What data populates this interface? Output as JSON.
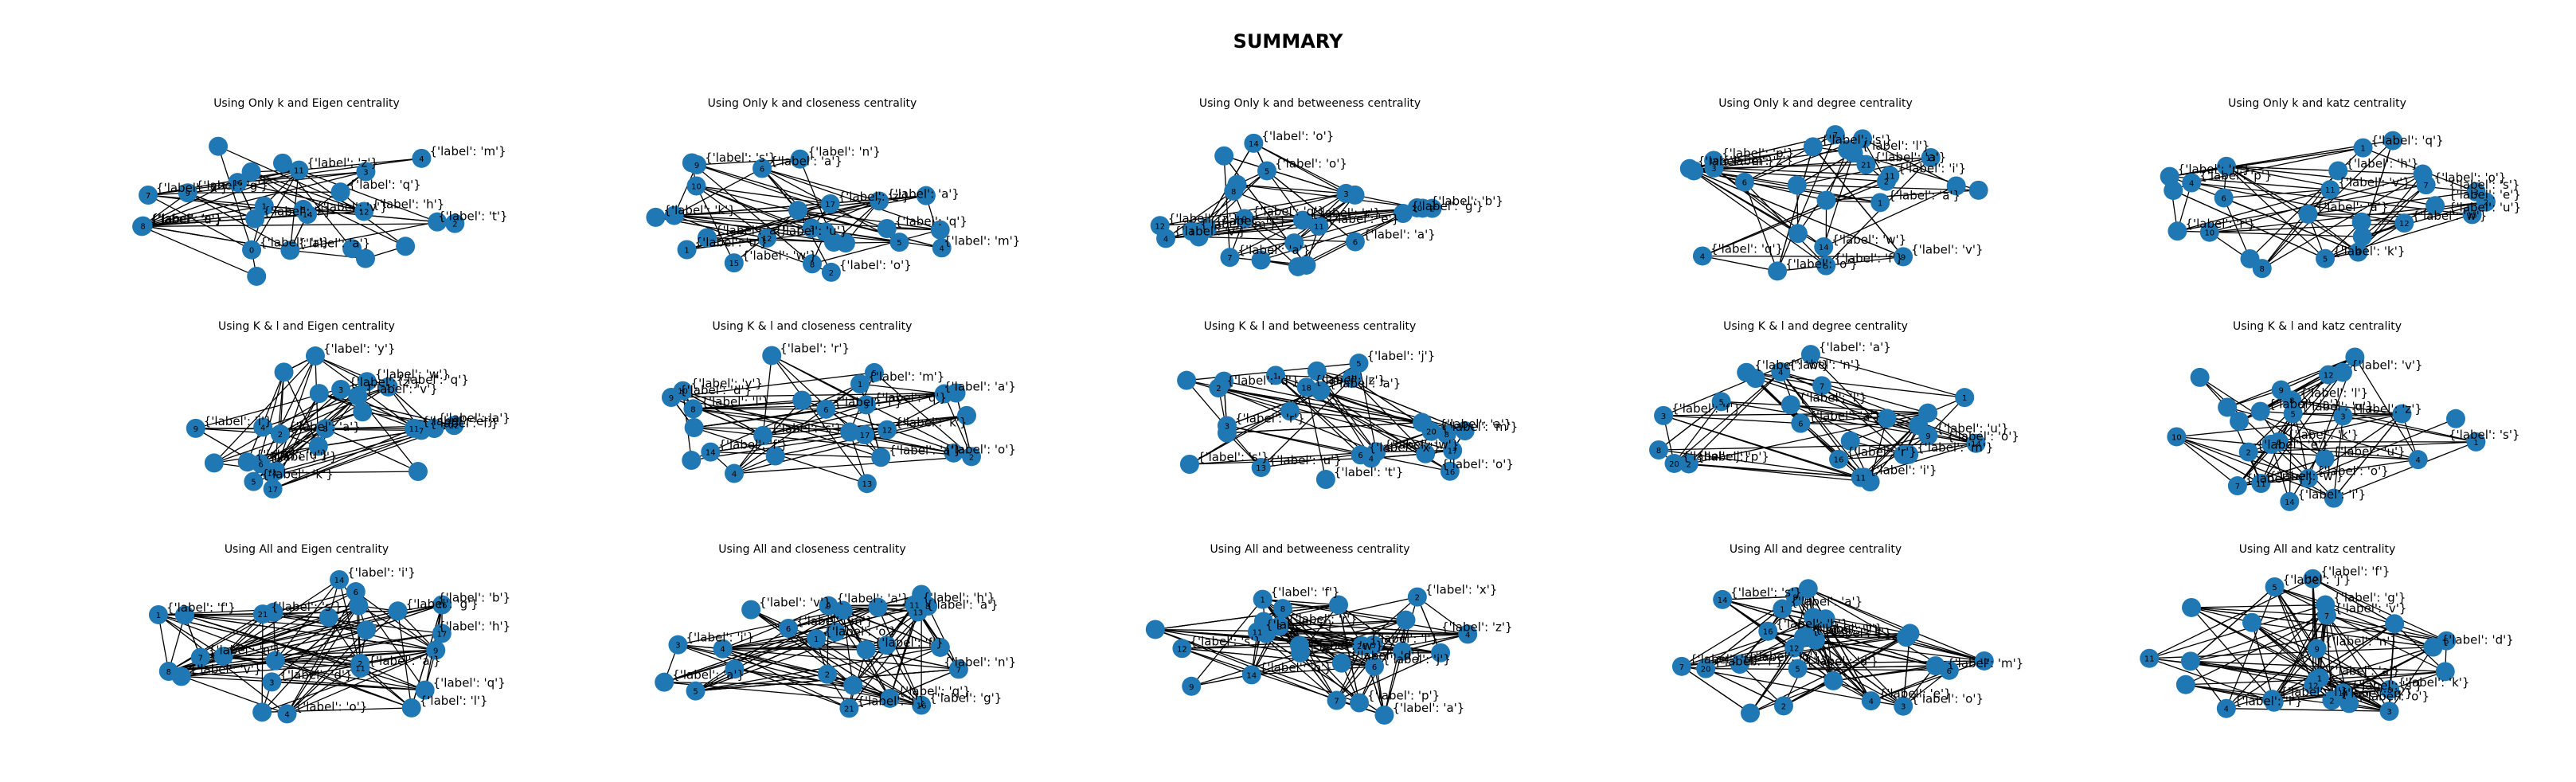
{
  "figure": {
    "suptitle": "SUMMARY",
    "node_color": "#1f77b4",
    "edge_color": "#000000"
  },
  "panels": [
    {
      "title": "Using Only k and Eigen centrality",
      "labels": [
        "{'label': 'm'}",
        "{'label': 'r'}",
        "{'label': 'x'}",
        "{'label': 'v'}",
        "{'label': 'a'}",
        "{'label': 'u'}",
        "{'label': 'i'}",
        "{'label': 'q'}",
        "{'label': 'h'}",
        "{'label': 's'}",
        "{'label': 'z'}",
        "{'label': 't'}",
        "{'label': 'g'}"
      ],
      "numbers": [
        "12",
        "4",
        "3",
        "8",
        "0",
        "1",
        "11",
        "7",
        "16",
        "2",
        "14",
        "5",
        "9"
      ],
      "edges": 60
    },
    {
      "title": "Using Only k and closeness centrality",
      "labels": [
        "{'label': 'a'}",
        "{'label': 'u'}",
        "{'label': 'z'}",
        "{'label': 'w'}",
        "{'label': 'k'}",
        "{'label': 'n'}",
        "{'label': 'q'}",
        "{'label': 'a'}",
        "{'label': 'o'}",
        "{'label': 'u'}",
        "{'label': 'a'}",
        "{'label': 's'}",
        "{'label': 'm'}"
      ],
      "numbers": [
        "2",
        "6",
        "10",
        "1",
        "12",
        "3",
        "7",
        "17",
        "5",
        "9",
        "15",
        "8",
        "4"
      ],
      "edges": 60
    },
    {
      "title": "Using Only k and betweeness centrality",
      "labels": [
        "{'label': 'z'}",
        "{'label': 'a'}",
        "{'label': 'q'}",
        "{'label': 'm'}",
        "{'label': 'g'}",
        "{'label': 'b'}",
        "{'label': 's'}",
        "{'label': 'r'}",
        "{'label': 'v'}",
        "{'label': 'o'}",
        "{'label': 'e'}",
        "{'label': 'a'}",
        "{'label': 'o'}"
      ],
      "numbers": [
        "4",
        "12",
        "3",
        "14",
        "7",
        "2",
        "11",
        "9",
        "20",
        "6",
        "1",
        "8",
        "5"
      ],
      "edges": 60
    },
    {
      "title": "Using Only k and degree centrality",
      "labels": [
        "{'label': 'w'}",
        "{'label': 'a'}",
        "{'label': 'i'}",
        "{'label': 'v'}",
        "{'label': 'm'}",
        "{'label': 'o'}",
        "{'label': 's'}",
        "{'label': 'l'}",
        "{'label': 'z'}",
        "{'label': 'p'}",
        "{'label': 'a'}",
        "{'label': 'q'}",
        "{'label': 'f'}"
      ],
      "numbers": [
        "3",
        "14",
        "6",
        "10",
        "1",
        "7",
        "21",
        "11",
        "2",
        "4",
        "9",
        "13",
        "5"
      ],
      "edges": 60
    },
    {
      "title": "Using Only k and katz centrality",
      "labels": [
        "{'label': 'u'}",
        "{'label': 'e'}",
        "{'label': 's'}",
        "{'label': 'k'}",
        "{'label': 'h'}",
        "{'label': 'n'}",
        "{'label': 'r'}",
        "{'label': 'a'}",
        "{'label': 'q'}",
        "{'label': 'p'}",
        "{'label': 'w'}",
        "{'label': 'o'}",
        "{'label': 'v'}"
      ],
      "numbers": [
        "1",
        "15",
        "8",
        "4",
        "2",
        "6",
        "12",
        "3",
        "10",
        "7",
        "5",
        "9",
        "11"
      ],
      "edges": 60
    },
    {
      "title": "Using K & l and Eigen centrality",
      "labels": [
        "{'label': 'z'}",
        "{'label': 'e'}",
        "{'label': 'a'}",
        "{'label': 'l'}",
        "{'label': 'u'}",
        "{'label': 'v'}",
        "{'label': 'y'}",
        "{'label': 'w'}",
        "{'label': 'a'}",
        "{'label': 'q'}",
        "{'label': 'k'}",
        "{'label': 'i'}",
        "{'label': 'f'}"
      ],
      "numbers": [
        "22",
        "3",
        "8",
        "1",
        "11",
        "17",
        "5",
        "2",
        "14",
        "9",
        "6",
        "4",
        "7"
      ],
      "edges": 70
    },
    {
      "title": "Using K & l and closeness centrality",
      "labels": [
        "{'label': 'y'}",
        "{'label': 'k'}",
        "{'label': 'q'}",
        "{'label': 'f'}",
        "{'label': 'a'}",
        "{'label': 'a'}",
        "{'label': 's'}",
        "{'label': 'r'}",
        "{'label': 'm'}",
        "{'label': 'i'}",
        "{'label': 'l'}",
        "{'label': 'o'}",
        "{'label': 'd'}"
      ],
      "numbers": [
        "1",
        "10",
        "4",
        "6",
        "12",
        "17",
        "8",
        "3",
        "13",
        "2",
        "14",
        "5",
        "9"
      ],
      "edges": 70
    },
    {
      "title": "Using K & l and betweeness centrality",
      "labels": [
        "{'label': 'z'}",
        "{'label': 'm'}",
        "{'label': 'u'}",
        "{'label': 'r'}",
        "{'label': 'w'}",
        "{'label': 's'}",
        "{'label': 'a'}",
        "{'label': 't'}",
        "{'label': 'a'}",
        "{'label': 'o'}",
        "{'label': 'j'}",
        "{'label': 'd'}",
        "{'label': 'x'}"
      ],
      "numbers": [
        "20",
        "18",
        "17",
        "16",
        "8",
        "19",
        "5",
        "13",
        "1",
        "2",
        "3",
        "4",
        "6"
      ],
      "edges": 70
    },
    {
      "title": "Using K & l and degree centrality",
      "labels": [
        "{'label': 'f'}",
        "{'label': 'u'}",
        "{'label': 'j'}",
        "{'label': 'a'}",
        "{'label': 'w'}",
        "{'label': 'l'}",
        "{'label': 'm'}",
        "{'label': 'a'}",
        "{'label': 'r'}",
        "{'label': 'o'}",
        "{'label': 'p'}",
        "{'label': 'i'}",
        "{'label': 'n'}"
      ],
      "numbers": [
        "16",
        "3",
        "7",
        "14",
        "9",
        "1",
        "2",
        "20",
        "5",
        "11",
        "6",
        "8",
        "4"
      ],
      "edges": 70
    },
    {
      "title": "Using K & l and katz centrality",
      "labels": [
        "{'label': 'w'}",
        "{'label': 's'}",
        "{'label': 'z'}",
        "{'label': 'l'}",
        "{'label': 'u'}",
        "{'label': 'a'}",
        "{'label': 'v'}",
        "{'label': 'o'}",
        "{'label': 'e'}",
        "{'label': 'j'}",
        "{'label': 'q'}",
        "{'label': 'k'}",
        "{'label': 'i'}"
      ],
      "numbers": [
        "2",
        "11",
        "4",
        "7",
        "1",
        "9",
        "5",
        "3",
        "10",
        "6",
        "8",
        "12",
        "14"
      ],
      "edges": 70
    },
    {
      "title": "Using All  and Eigen centrality",
      "labels": [
        "{'label': 'a'}",
        "{'label': 's'}",
        "{'label': 'd'}",
        "{'label': 'i'}",
        "{'label': 'v'}",
        "{'label': 'g'}",
        "{'label': 'q'}",
        "{'label': 'l'}",
        "{'label': 'f'}",
        "{'label': 'o'}",
        "{'label': 'b'}",
        "{'label': 'h'}",
        "{'label': 'n'}"
      ],
      "numbers": [
        "1",
        "11",
        "6",
        "4",
        "21",
        "8",
        "16",
        "3",
        "9",
        "17",
        "14",
        "2",
        "7"
      ],
      "edges": 120
    },
    {
      "title": "Using All  and closeness centrality",
      "labels": [
        "{'label': 'a'}",
        "{'label': 'm'}",
        "{'label': 'a'}",
        "{'label': 'h'}",
        "{'label': 'f'}",
        "{'label': 'q'}",
        "{'label': 'a'}",
        "{'label': 'v'}",
        "{'label': 'o'}",
        "{'label': 'l'}",
        "{'label': 'g'}",
        "{'label': 'i'}",
        "{'label': 'n'}"
      ],
      "numbers": [
        "1",
        "13",
        "4",
        "21",
        "6",
        "2",
        "16",
        "9",
        "8",
        "3",
        "11",
        "5",
        "7"
      ],
      "edges": 120
    },
    {
      "title": "Using All  and betweeness centrality",
      "labels": [
        "{'label': 'r'}",
        "{'label': 'f'}",
        "{'label': 'x'}",
        "{'label': 'z'}",
        "{'label': 'p'}",
        "{'label': 'w'}",
        "{'label': 'd'}",
        "{'label': 'a'}",
        "{'label': 'l'}",
        "{'label': 's'}",
        "{'label': 'o'}",
        "{'label': 'j'}",
        "{'label': 'i'}"
      ],
      "numbers": [
        "26",
        "3",
        "7",
        "12",
        "1",
        "5",
        "14",
        "2",
        "9",
        "6",
        "4",
        "8",
        "11"
      ],
      "edges": 120
    },
    {
      "title": "Using All  and degree centrality",
      "labels": [
        "{'label': 't'}",
        "{'label': 'a'}",
        "{'label': 'd'}",
        "{'label': 'm'}",
        "{'label': 'j'}",
        "{'label': 'i'}",
        "{'label': 'q'}",
        "{'label': 'l'}",
        "{'label': 'o'}",
        "{'label': 'f'}",
        "{'label': 'h'}",
        "{'label': 's'}",
        "{'label': 'e'}"
      ],
      "numbers": [
        "3",
        "7",
        "12",
        "20",
        "1",
        "9",
        "16",
        "5",
        "2",
        "14",
        "6",
        "11",
        "4"
      ],
      "edges": 120
    },
    {
      "title": "Using All  and katz centrality",
      "labels": [
        "{'label': 'a'}",
        "{'label': 'j'}",
        "{'label': 'v'}",
        "{'label': 'k'}",
        "{'label': 'l'}",
        "{'label': 'd'}",
        "{'label': 'g'}",
        "{'label': 'o'}",
        "{'label': 'i'}",
        "{'label': 'n'}",
        "{'label': 'q'}",
        "{'label': 's'}",
        "{'label': 'f'}"
      ],
      "numbers": [
        "4",
        "1",
        "12",
        "9",
        "5",
        "11",
        "2",
        "7",
        "3",
        "14",
        "8",
        "6",
        "10"
      ],
      "edges": 120
    }
  ]
}
